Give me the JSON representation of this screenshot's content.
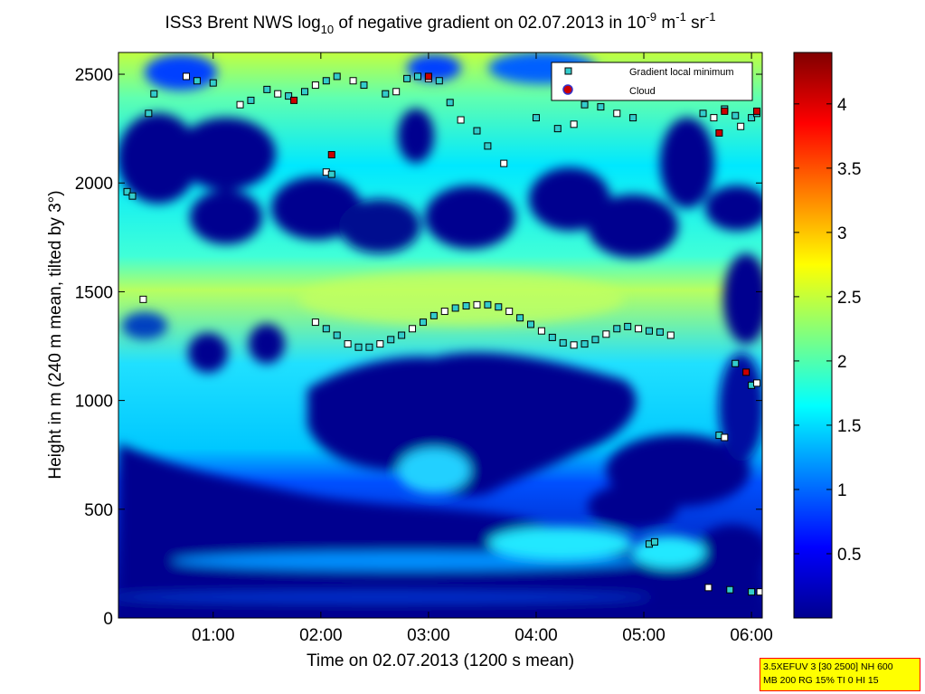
{
  "chart_data": {
    "type": "heatmap",
    "title": {
      "prefix": "ISS3 Brent NWS log",
      "sub": "10",
      "middle": " of negative gradient on 02.07.2013 in 10",
      "sup1": "-9",
      "middle2": " m",
      "sup2": "-1",
      "middle3": " sr",
      "sup3": "-1"
    },
    "xlabel": "Time on 02.07.2013 (1200 s mean)",
    "ylabel": "Height in m (240 m mean, tilted by 3°)",
    "xlim_hours": [
      0.12,
      6.1
    ],
    "ylim": [
      0,
      2600
    ],
    "xticks": [
      {
        "value": 1,
        "label": "01:00"
      },
      {
        "value": 2,
        "label": "02:00"
      },
      {
        "value": 3,
        "label": "03:00"
      },
      {
        "value": 4,
        "label": "04:00"
      },
      {
        "value": 5,
        "label": "05:00"
      },
      {
        "value": 6,
        "label": "06:00"
      }
    ],
    "yticks": [
      {
        "value": 0,
        "label": "0"
      },
      {
        "value": 500,
        "label": "500"
      },
      {
        "value": 1000,
        "label": "1000"
      },
      {
        "value": 1500,
        "label": "1500"
      },
      {
        "value": 2000,
        "label": "2000"
      },
      {
        "value": 2500,
        "label": "2500"
      }
    ],
    "colorbar": {
      "range": [
        0,
        4.4
      ],
      "ticks": [
        {
          "value": 0.5,
          "label": "0.5"
        },
        {
          "value": 1,
          "label": "1"
        },
        {
          "value": 1.5,
          "label": "1.5"
        },
        {
          "value": 2,
          "label": "2"
        },
        {
          "value": 2.5,
          "label": "2.5"
        },
        {
          "value": 3,
          "label": "3"
        },
        {
          "value": 3.5,
          "label": "3.5"
        },
        {
          "value": 4,
          "label": "4"
        }
      ],
      "colormap": "jet"
    },
    "legend": {
      "position": "top-right",
      "entries": [
        {
          "label": "Gradient local minimum",
          "marker": "square",
          "color": "#33cccc"
        },
        {
          "label": "Cloud",
          "marker": "circle",
          "color": "#cc0000"
        }
      ]
    },
    "series": [
      {
        "name": "Gradient local minimum",
        "color": "#33cccc",
        "points": [
          [
            1.95,
            1360
          ],
          [
            2.05,
            1330
          ],
          [
            2.15,
            1300
          ],
          [
            2.25,
            1260
          ],
          [
            2.35,
            1245
          ],
          [
            2.45,
            1245
          ],
          [
            2.55,
            1260
          ],
          [
            2.65,
            1280
          ],
          [
            2.75,
            1300
          ],
          [
            2.85,
            1330
          ],
          [
            2.95,
            1360
          ],
          [
            3.05,
            1390
          ],
          [
            3.15,
            1410
          ],
          [
            3.25,
            1425
          ],
          [
            3.35,
            1435
          ],
          [
            3.45,
            1440
          ],
          [
            3.55,
            1440
          ],
          [
            3.65,
            1430
          ],
          [
            3.75,
            1410
          ],
          [
            3.85,
            1380
          ],
          [
            3.95,
            1350
          ],
          [
            4.05,
            1320
          ],
          [
            4.15,
            1290
          ],
          [
            4.25,
            1265
          ],
          [
            4.35,
            1255
          ],
          [
            4.45,
            1260
          ],
          [
            4.55,
            1280
          ],
          [
            4.65,
            1305
          ],
          [
            4.75,
            1330
          ],
          [
            4.85,
            1340
          ],
          [
            4.95,
            1330
          ],
          [
            5.05,
            1320
          ],
          [
            5.15,
            1315
          ],
          [
            5.25,
            1300
          ],
          [
            0.2,
            1960
          ],
          [
            0.25,
            1940
          ],
          [
            0.35,
            1465
          ],
          [
            0.4,
            2320
          ],
          [
            0.45,
            2410
          ],
          [
            0.75,
            2490
          ],
          [
            0.85,
            2470
          ],
          [
            1.0,
            2460
          ],
          [
            1.25,
            2360
          ],
          [
            1.35,
            2380
          ],
          [
            1.5,
            2430
          ],
          [
            1.6,
            2410
          ],
          [
            1.7,
            2400
          ],
          [
            1.85,
            2420
          ],
          [
            1.95,
            2450
          ],
          [
            2.05,
            2470
          ],
          [
            2.15,
            2490
          ],
          [
            2.3,
            2470
          ],
          [
            2.4,
            2450
          ],
          [
            2.6,
            2410
          ],
          [
            2.7,
            2420
          ],
          [
            2.8,
            2480
          ],
          [
            2.9,
            2490
          ],
          [
            3.0,
            2480
          ],
          [
            3.1,
            2470
          ],
          [
            3.2,
            2370
          ],
          [
            3.3,
            2290
          ],
          [
            3.45,
            2240
          ],
          [
            3.55,
            2170
          ],
          [
            3.7,
            2090
          ],
          [
            4.0,
            2300
          ],
          [
            4.2,
            2250
          ],
          [
            4.35,
            2270
          ],
          [
            4.45,
            2360
          ],
          [
            4.6,
            2350
          ],
          [
            4.75,
            2320
          ],
          [
            4.9,
            2300
          ],
          [
            5.55,
            2320
          ],
          [
            5.65,
            2300
          ],
          [
            5.75,
            2340
          ],
          [
            5.85,
            2310
          ],
          [
            5.9,
            2260
          ],
          [
            6.0,
            2300
          ],
          [
            6.05,
            2320
          ],
          [
            2.05,
            2050
          ],
          [
            2.1,
            2040
          ],
          [
            5.7,
            840
          ],
          [
            5.75,
            830
          ],
          [
            5.85,
            1170
          ],
          [
            6.0,
            1070
          ],
          [
            6.05,
            1080
          ],
          [
            5.05,
            340
          ],
          [
            5.1,
            350
          ],
          [
            5.6,
            140
          ],
          [
            5.8,
            130
          ],
          [
            6.0,
            120
          ],
          [
            6.08,
            120
          ]
        ]
      },
      {
        "name": "Cloud",
        "color": "#cc0000",
        "points": [
          [
            1.75,
            2380
          ],
          [
            2.1,
            2130
          ],
          [
            3.0,
            2490
          ],
          [
            5.7,
            2230
          ],
          [
            5.75,
            2330
          ],
          [
            6.05,
            2330
          ],
          [
            5.95,
            1130
          ]
        ]
      }
    ]
  },
  "info_box": {
    "line1": "3.5XEFUV 3 [30 2500] NH 600",
    "line2": "MB 200 RG 15% TI 0 HI 15"
  },
  "colors": {
    "background_low": "#00008f",
    "mid": "#00ffff",
    "high": "#ffff00",
    "max": "#800000"
  }
}
